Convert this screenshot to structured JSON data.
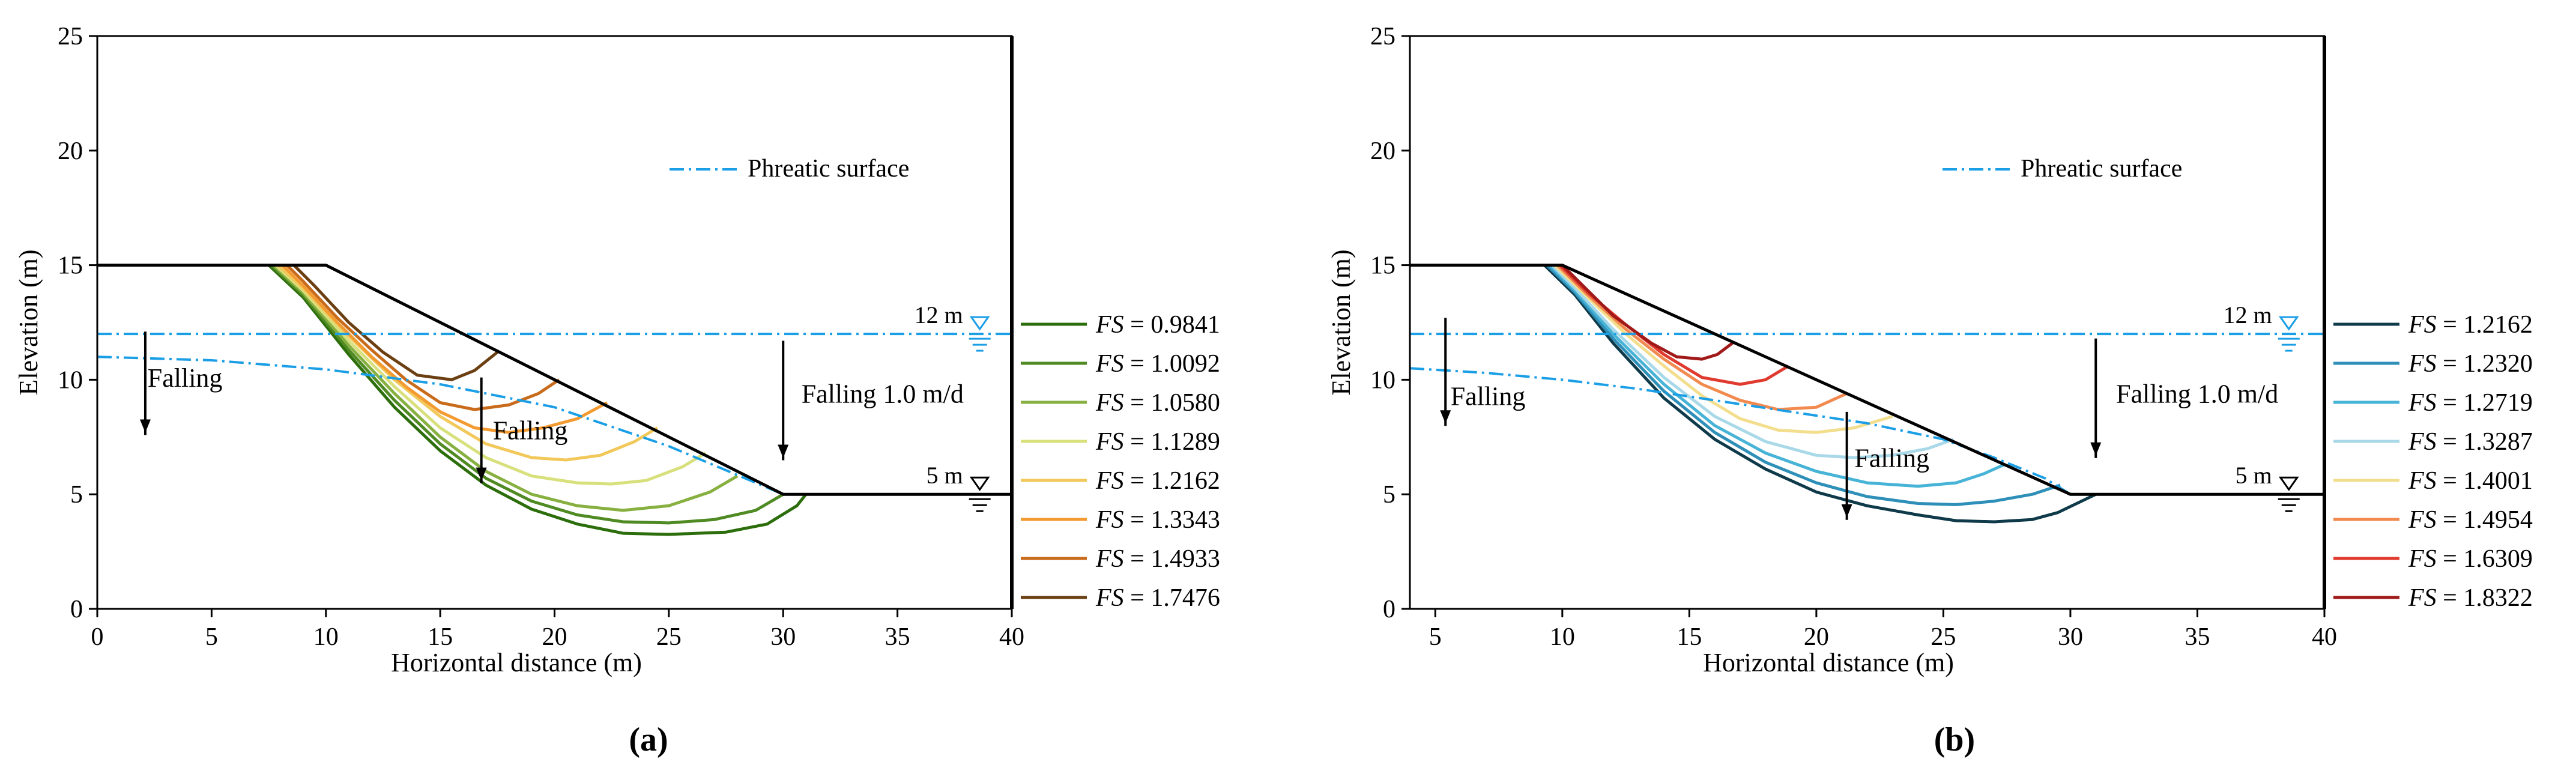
{
  "colors": {
    "axis": "#000000",
    "slope": "#000000",
    "phreatic": "#1a9ee6",
    "water_symbol": "#1a9ee6"
  },
  "chart_data": [
    {
      "type": "line",
      "panel_label": "(a)",
      "xlabel": "Horizontal distance (m)",
      "ylabel": "Elevation (m)",
      "xlim": [
        0,
        40
      ],
      "ylim": [
        0,
        25
      ],
      "xticks": [
        0,
        5,
        10,
        15,
        20,
        25,
        30,
        35,
        40
      ],
      "yticks": [
        0,
        5,
        10,
        15,
        20,
        25
      ],
      "slope_profile": {
        "x": [
          0,
          10,
          30,
          40
        ],
        "y": [
          15,
          15,
          5,
          5
        ]
      },
      "phreatic_legend": "Phreatic surface",
      "phreatic_upper": {
        "x": [
          0,
          40
        ],
        "y": [
          12,
          12
        ]
      },
      "phreatic_lower": {
        "x": [
          0,
          5,
          10,
          15,
          20,
          25,
          30,
          40
        ],
        "y": [
          11,
          10.85,
          10.45,
          9.8,
          8.8,
          7.1,
          5,
          5
        ]
      },
      "water_levels": {
        "upper_label": "12 m",
        "upper_y": 12,
        "lower_label": "5 m",
        "lower_y": 5,
        "symbol_x": 38.6
      },
      "annotations": [
        {
          "text": "Falling",
          "x": 2.2,
          "y": 9.7,
          "arrow": [
            [
              2.1,
              12.1
            ],
            [
              2.1,
              7.9
            ]
          ]
        },
        {
          "text": "Falling",
          "x": 17.3,
          "y": 7.4,
          "arrow": [
            [
              16.8,
              10.1
            ],
            [
              16.8,
              5.8
            ]
          ]
        },
        {
          "text": "Falling 1.0 m/d",
          "x": 30.8,
          "y": 9.0,
          "arrow": [
            [
              30.0,
              11.7
            ],
            [
              30.0,
              6.8
            ]
          ]
        }
      ],
      "legend_title": "FS",
      "series": [
        {
          "name": "FS = 0.9841",
          "color": "#2d6e0c",
          "x": [
            7.5,
            9,
            11,
            13,
            15,
            17,
            19,
            21,
            23,
            25,
            27.5,
            29.3,
            30.6,
            31
          ],
          "y": [
            15,
            13.6,
            11.1,
            8.8,
            6.9,
            5.4,
            4.35,
            3.7,
            3.3,
            3.25,
            3.35,
            3.7,
            4.5,
            5
          ]
        },
        {
          "name": "FS = 1.0092",
          "color": "#4f8a23",
          "x": [
            7.6,
            9,
            11,
            13,
            15,
            17,
            19,
            21,
            23,
            25,
            27,
            28.8,
            30
          ],
          "y": [
            15,
            13.7,
            11.3,
            9.1,
            7.2,
            5.7,
            4.7,
            4.1,
            3.8,
            3.75,
            3.9,
            4.3,
            5
          ]
        },
        {
          "name": "FS = 1.0580",
          "color": "#87b040",
          "x": [
            7.7,
            9,
            11,
            13,
            15,
            17,
            19,
            21,
            23,
            25,
            26.8,
            28
          ],
          "y": [
            15,
            13.8,
            11.5,
            9.4,
            7.5,
            6.0,
            5.0,
            4.5,
            4.3,
            4.5,
            5.1,
            5.8
          ]
        },
        {
          "name": "FS = 1.1289",
          "color": "#d8e07c",
          "x": [
            7.8,
            9,
            11,
            13,
            15,
            17,
            19,
            21,
            22.5,
            24,
            25.6,
            26.6
          ],
          "y": [
            15,
            13.9,
            11.7,
            9.7,
            7.9,
            6.6,
            5.8,
            5.5,
            5.45,
            5.6,
            6.2,
            6.8
          ]
        },
        {
          "name": "FS = 1.2162",
          "color": "#f2c85a",
          "x": [
            7.9,
            9,
            11,
            13,
            15,
            17,
            19,
            20.5,
            22,
            23.5,
            24.5
          ],
          "y": [
            15,
            14.0,
            11.9,
            10.0,
            8.4,
            7.2,
            6.6,
            6.5,
            6.7,
            7.3,
            7.9
          ]
        },
        {
          "name": "FS = 1.3343",
          "color": "#f39a30",
          "x": [
            8.1,
            9,
            10.5,
            12,
            13.5,
            15,
            16.5,
            18,
            19.5,
            21,
            22.3
          ],
          "y": [
            15,
            14.1,
            12.5,
            11.0,
            9.7,
            8.6,
            7.9,
            7.7,
            7.9,
            8.3,
            9.0
          ]
        },
        {
          "name": "FS = 1.4933",
          "color": "#c86b1b",
          "x": [
            8.3,
            9,
            10.5,
            12,
            13.5,
            15,
            16.5,
            18,
            19.3,
            20.2
          ],
          "y": [
            15,
            14.3,
            12.7,
            11.3,
            10.0,
            9.0,
            8.7,
            8.9,
            9.4,
            10.0
          ]
        },
        {
          "name": "FS = 1.7476",
          "color": "#6b3f12",
          "x": [
            8.6,
            9.5,
            11,
            12.5,
            14,
            15.5,
            16.5,
            17.5
          ],
          "y": [
            15,
            14.1,
            12.5,
            11.2,
            10.2,
            10.0,
            10.4,
            11.2
          ]
        }
      ]
    },
    {
      "type": "line",
      "panel_label": "(b)",
      "xlabel": "Horizontal distance (m)",
      "ylabel": "Elevation (m)",
      "xlim": [
        4,
        40
      ],
      "ylim": [
        0,
        25
      ],
      "xticks": [
        5,
        10,
        15,
        20,
        25,
        30,
        35,
        40
      ],
      "yticks": [
        0,
        5,
        10,
        15,
        20,
        25
      ],
      "slope_profile": {
        "x": [
          4,
          10,
          30,
          40
        ],
        "y": [
          15,
          15,
          5,
          5
        ]
      },
      "phreatic_legend": "Phreatic surface",
      "phreatic_upper": {
        "x": [
          4,
          40
        ],
        "y": [
          12,
          12
        ]
      },
      "phreatic_lower": {
        "x": [
          4,
          7,
          10,
          13,
          16,
          19,
          22,
          25,
          27,
          29,
          30,
          40
        ],
        "y": [
          10.5,
          10.3,
          10.0,
          9.6,
          9.1,
          8.6,
          8.1,
          7.4,
          6.6,
          5.7,
          5,
          5
        ]
      },
      "water_levels": {
        "upper_label": "12 m",
        "upper_y": 12,
        "lower_label": "5 m",
        "lower_y": 5,
        "symbol_x": 38.6
      },
      "annotations": [
        {
          "text": "Falling",
          "x": 5.6,
          "y": 8.9,
          "arrow": [
            [
              5.4,
              12.7
            ],
            [
              5.4,
              8.3
            ]
          ]
        },
        {
          "text": "Falling",
          "x": 21.5,
          "y": 6.2,
          "arrow": [
            [
              21.2,
              8.6
            ],
            [
              21.2,
              4.2
            ]
          ]
        },
        {
          "text": "Falling 1.0 m/d",
          "x": 31.8,
          "y": 9.0,
          "arrow": [
            [
              31.0,
              11.8
            ],
            [
              31.0,
              6.9
            ]
          ]
        }
      ],
      "legend_title": "FS",
      "series": [
        {
          "name": "FS = 1.2162",
          "color": "#0f3a4a",
          "x": [
            9.3,
            10.5,
            12,
            14,
            16,
            18,
            20,
            22,
            24,
            25.5,
            27,
            28.5,
            29.5,
            31
          ],
          "y": [
            15,
            13.7,
            11.6,
            9.2,
            7.4,
            6.1,
            5.1,
            4.5,
            4.1,
            3.85,
            3.8,
            3.9,
            4.2,
            5
          ]
        },
        {
          "name": "FS = 1.2320",
          "color": "#2e8fb8",
          "x": [
            9.4,
            10.5,
            12,
            14,
            16,
            18,
            20,
            22,
            24,
            25.5,
            27,
            28.5,
            29.6
          ],
          "y": [
            15,
            13.8,
            11.8,
            9.5,
            7.7,
            6.4,
            5.5,
            4.9,
            4.6,
            4.55,
            4.7,
            5.0,
            5.4
          ]
        },
        {
          "name": "FS = 1.2719",
          "color": "#47b3d6",
          "x": [
            9.5,
            10.5,
            12,
            14,
            16,
            18,
            20,
            22,
            24,
            25.5,
            26.6,
            27.4
          ],
          "y": [
            15,
            13.9,
            12.0,
            9.8,
            8.0,
            6.8,
            6.0,
            5.5,
            5.35,
            5.5,
            5.9,
            6.3
          ]
        },
        {
          "name": "FS = 1.3287",
          "color": "#a9d9e8",
          "x": [
            9.6,
            10.5,
            12,
            14,
            16,
            18,
            20,
            21.5,
            23,
            24.4,
            25.4
          ],
          "y": [
            15,
            14.0,
            12.2,
            10.1,
            8.4,
            7.3,
            6.7,
            6.6,
            6.7,
            7.0,
            7.4
          ]
        },
        {
          "name": "FS = 1.4001",
          "color": "#f2de8c",
          "x": [
            9.7,
            11,
            12.5,
            14,
            15.5,
            17,
            18.5,
            20,
            21.5,
            23
          ],
          "y": [
            15,
            13.6,
            12.0,
            10.6,
            9.3,
            8.3,
            7.8,
            7.7,
            7.9,
            8.4
          ]
        },
        {
          "name": "FS = 1.4954",
          "color": "#f28a50",
          "x": [
            9.8,
            11,
            12.5,
            14,
            15.5,
            17,
            18.5,
            20,
            21.2
          ],
          "y": [
            15,
            13.7,
            12.2,
            10.9,
            9.8,
            9.1,
            8.7,
            8.8,
            9.4
          ]
        },
        {
          "name": "FS = 1.6309",
          "color": "#e03a2e",
          "x": [
            9.9,
            11,
            12.5,
            14,
            15.5,
            17,
            18,
            18.9
          ],
          "y": [
            15,
            13.8,
            12.4,
            11.1,
            10.1,
            9.8,
            10.0,
            10.6
          ]
        },
        {
          "name": "FS = 1.8322",
          "color": "#a01818",
          "x": [
            10.0,
            11,
            12,
            13.5,
            14.5,
            15.5,
            16.1,
            16.7
          ],
          "y": [
            15,
            13.9,
            12.8,
            11.6,
            11.0,
            10.9,
            11.1,
            11.6
          ]
        }
      ]
    }
  ]
}
